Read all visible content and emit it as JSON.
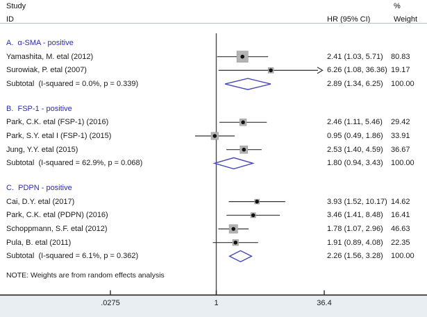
{
  "title_columns": {
    "study": "Study",
    "id": "ID",
    "percent": "%",
    "hr_ci": "HR (95% CI)",
    "weight": "Weight"
  },
  "note": "NOTE: Weights are from random effects analysis",
  "colors": {
    "heading_blue": "#2b2bb0",
    "diamond_blue": "#4646bb",
    "marker_gray": "#b3b3b3",
    "marker_border": "#969696",
    "ci_line": "#303030",
    "axis_line": "#2a2a2a",
    "reference_line": "#4a4a4a",
    "axis_band": "#e9eef3"
  },
  "chart_data": {
    "type": "forest",
    "x_scale": "log",
    "effect_label": "HR",
    "x_ticks": [
      {
        "label": ".0275",
        "value": 0.0275
      },
      {
        "label": "1",
        "value": 1
      },
      {
        "label": "36.4",
        "value": 36.4
      }
    ],
    "groups": [
      {
        "heading": "A.  α-SMA - positive",
        "studies": [
          {
            "label": "Yamashita, M. etal (2012)",
            "hr": 2.41,
            "ci_low": 1.03,
            "ci_high": 5.71,
            "hr_text": "2.41 (1.03, 5.71)",
            "weight": 80.83,
            "weight_text": "80.83",
            "arrow_high": false
          },
          {
            "label": "Surowiak, P. etal (2007)",
            "hr": 6.26,
            "ci_low": 1.08,
            "ci_high": 36.36,
            "hr_text": "6.26 (1.08, 36.36)",
            "weight": 19.17,
            "weight_text": "19.17",
            "arrow_high": true
          }
        ],
        "subtotal": {
          "label": "Subtotal  (I-squared = 0.0%, p = 0.339)",
          "hr": 2.89,
          "ci_low": 1.34,
          "ci_high": 6.25,
          "hr_text": "2.89 (1.34, 6.25)",
          "weight_text": "100.00"
        }
      },
      {
        "heading": "B.  FSP-1 - positive",
        "studies": [
          {
            "label": "Park, C.K. etal (FSP-1) (2016)",
            "hr": 2.46,
            "ci_low": 1.11,
            "ci_high": 5.46,
            "hr_text": "2.46 (1.11, 5.46)",
            "weight": 29.42,
            "weight_text": "29.42",
            "arrow_high": false
          },
          {
            "label": "Park, S.Y. etal I (FSP-1) (2015)",
            "hr": 0.95,
            "ci_low": 0.49,
            "ci_high": 1.86,
            "hr_text": "0.95 (0.49, 1.86)",
            "weight": 33.91,
            "weight_text": "33.91",
            "arrow_high": false
          },
          {
            "label": "Jung, Y.Y. etal (2015)",
            "hr": 2.53,
            "ci_low": 1.4,
            "ci_high": 4.59,
            "hr_text": "2.53 (1.40, 4.59)",
            "weight": 36.67,
            "weight_text": "36.67",
            "arrow_high": false
          }
        ],
        "subtotal": {
          "label": "Subtotal  (I-squared = 62.9%, p = 0.068)",
          "hr": 1.8,
          "ci_low": 0.94,
          "ci_high": 3.43,
          "hr_text": "1.80 (0.94, 3.43)",
          "weight_text": "100.00"
        }
      },
      {
        "heading": "C.  PDPN - positive",
        "studies": [
          {
            "label": "Cai, D.Y. etal (2017)",
            "hr": 3.93,
            "ci_low": 1.52,
            "ci_high": 10.17,
            "hr_text": "3.93 (1.52, 10.17)",
            "weight": 14.62,
            "weight_text": "14.62",
            "arrow_high": false
          },
          {
            "label": "Park, C.K. etal (PDPN) (2016)",
            "hr": 3.46,
            "ci_low": 1.41,
            "ci_high": 8.48,
            "hr_text": "3.46 (1.41, 8.48)",
            "weight": 16.41,
            "weight_text": "16.41",
            "arrow_high": false
          },
          {
            "label": "Schoppmann, S.F. etal (2012)",
            "hr": 1.78,
            "ci_low": 1.07,
            "ci_high": 2.96,
            "hr_text": "1.78 (1.07, 2.96)",
            "weight": 46.63,
            "weight_text": "46.63",
            "arrow_high": false
          },
          {
            "label": "Pula, B. etal (2011)",
            "hr": 1.91,
            "ci_low": 0.89,
            "ci_high": 4.08,
            "hr_text": "1.91 (0.89, 4.08)",
            "weight": 22.35,
            "weight_text": "22.35",
            "arrow_high": false
          }
        ],
        "subtotal": {
          "label": "Subtotal  (I-squared = 6.1%, p = 0.362)",
          "hr": 2.26,
          "ci_low": 1.56,
          "ci_high": 3.28,
          "hr_text": "2.26 (1.56, 3.28)",
          "weight_text": "100.00"
        }
      }
    ]
  }
}
